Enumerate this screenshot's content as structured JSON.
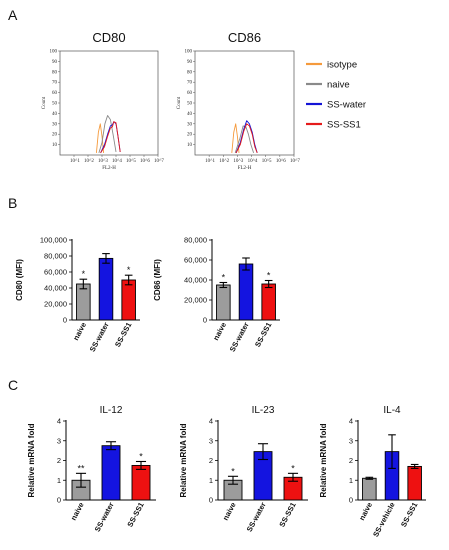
{
  "panels": {
    "a": "A",
    "b": "B",
    "c": "C"
  },
  "legend": [
    {
      "label": "isotype",
      "color": "#f59a3c"
    },
    {
      "label": "naive",
      "color": "#8a8a8a"
    },
    {
      "label": "SS-water",
      "color": "#1414d6"
    },
    {
      "label": "SS-SS1",
      "color": "#e51b1b"
    }
  ],
  "chart_data": [
    {
      "type": "line",
      "title": "CD80",
      "xlabel": "FL2-H",
      "ylabel": "Count",
      "xscale": "log",
      "xlim": [
        1,
        10000000
      ],
      "x_tick_labels": [
        "10^1",
        "10^2",
        "10^3",
        "10^4",
        "10^5",
        "10^6",
        "10^7"
      ],
      "y_tick_labels": [
        "10",
        "20",
        "30",
        "40",
        "50",
        "60",
        "70",
        "80",
        "90",
        "100"
      ],
      "ylim": [
        0,
        100
      ],
      "series": [
        {
          "name": "isotype",
          "x": [
            400,
            550,
            750,
            1000,
            1300
          ],
          "y": [
            2,
            22,
            30,
            18,
            2
          ]
        },
        {
          "name": "naive",
          "x": [
            600,
            1000,
            1600,
            2500,
            4000,
            6500,
            10000
          ],
          "y": [
            2,
            12,
            30,
            38,
            34,
            18,
            3
          ]
        },
        {
          "name": "SS-water",
          "x": [
            800,
            1500,
            2500,
            4000,
            5500,
            7000,
            10000,
            14000,
            20000
          ],
          "y": [
            2,
            10,
            20,
            28,
            29,
            32,
            30,
            18,
            3
          ]
        },
        {
          "name": "SS-SS1",
          "x": [
            800,
            1500,
            2500,
            4000,
            5500,
            7000,
            10000,
            14000,
            20000
          ],
          "y": [
            2,
            8,
            18,
            26,
            27,
            32,
            31,
            18,
            3
          ]
        }
      ]
    },
    {
      "type": "line",
      "title": "CD86",
      "xlabel": "FL2-H",
      "ylabel": "Count",
      "xscale": "log",
      "xlim": [
        1,
        10000000
      ],
      "x_tick_labels": [
        "10^1",
        "10^2",
        "10^3",
        "10^4",
        "10^5",
        "10^6",
        "10^7"
      ],
      "y_tick_labels": [
        "10",
        "20",
        "30",
        "40",
        "50",
        "60",
        "70",
        "80",
        "90",
        "100"
      ],
      "ylim": [
        0,
        100
      ],
      "series": [
        {
          "name": "isotype",
          "x": [
            400,
            550,
            750,
            1000,
            1300
          ],
          "y": [
            2,
            22,
            30,
            18,
            2
          ]
        },
        {
          "name": "naive",
          "x": [
            700,
            1500,
            2500,
            4000,
            6000,
            9000,
            14000
          ],
          "y": [
            2,
            16,
            28,
            27,
            20,
            10,
            2
          ]
        },
        {
          "name": "SS-water",
          "x": [
            800,
            1600,
            2800,
            4500,
            7000,
            11000,
            17000,
            25000
          ],
          "y": [
            2,
            12,
            25,
            33,
            30,
            22,
            10,
            2
          ]
        },
        {
          "name": "SS-SS1",
          "x": [
            800,
            1600,
            2800,
            4500,
            7000,
            11000,
            17000,
            25000
          ],
          "y": [
            2,
            10,
            23,
            30,
            28,
            20,
            8,
            2
          ]
        }
      ]
    },
    {
      "type": "bar",
      "title": "",
      "ylabel": "CD80 (MFI)",
      "ylim": [
        0,
        100000
      ],
      "y_ticks": [
        0,
        20000,
        40000,
        60000,
        80000,
        100000
      ],
      "y_tick_labels": [
        "0",
        "20,000",
        "40,000",
        "60,000",
        "80,000",
        "100,000"
      ],
      "categories": [
        "naive",
        "SS-water",
        "SS-SS1"
      ],
      "values": [
        45000,
        77000,
        50000
      ],
      "errors": [
        6000,
        6000,
        6000
      ],
      "significance": [
        "*",
        "",
        "*"
      ],
      "colors": [
        "#9c9c9c",
        "#1414e0",
        "#ee1111"
      ]
    },
    {
      "type": "bar",
      "title": "",
      "ylabel": "CD86 (MFI)",
      "ylim": [
        0,
        80000
      ],
      "y_ticks": [
        0,
        20000,
        40000,
        60000,
        80000
      ],
      "y_tick_labels": [
        "0",
        "20,000",
        "40,000",
        "60,000",
        "80,000"
      ],
      "categories": [
        "naive",
        "SS-water",
        "SS-SS1"
      ],
      "values": [
        35000,
        56000,
        36000
      ],
      "errors": [
        2500,
        6000,
        3500
      ],
      "significance": [
        "*",
        "",
        "*"
      ],
      "colors": [
        "#9c9c9c",
        "#1414e0",
        "#ee1111"
      ]
    },
    {
      "type": "bar",
      "title": "IL-12",
      "ylabel": "Relative mRNA fold",
      "ylim": [
        0,
        4
      ],
      "y_ticks": [
        0,
        1,
        2,
        3,
        4
      ],
      "y_tick_labels": [
        "0",
        "1",
        "2",
        "3",
        "4"
      ],
      "categories": [
        "naive",
        "SS-water",
        "SS-SS1"
      ],
      "values": [
        1.0,
        2.75,
        1.75
      ],
      "errors": [
        0.35,
        0.2,
        0.2
      ],
      "significance": [
        "**",
        "",
        "*"
      ],
      "colors": [
        "#9c9c9c",
        "#1414e0",
        "#ee1111"
      ]
    },
    {
      "type": "bar",
      "title": "IL-23",
      "ylabel": "Relative mRNA fold",
      "ylim": [
        0,
        4
      ],
      "y_ticks": [
        0,
        1,
        2,
        3,
        4
      ],
      "y_tick_labels": [
        "0",
        "1",
        "2",
        "3",
        "4"
      ],
      "categories": [
        "naive",
        "SS-water",
        "SS-SS1"
      ],
      "values": [
        1.0,
        2.45,
        1.15
      ],
      "errors": [
        0.2,
        0.4,
        0.2
      ],
      "significance": [
        "*",
        "",
        "*"
      ],
      "colors": [
        "#9c9c9c",
        "#1414e0",
        "#ee1111"
      ]
    },
    {
      "type": "bar",
      "title": "IL-4",
      "ylabel": "Relative mRNA fold",
      "ylim": [
        0,
        4
      ],
      "y_ticks": [
        0,
        1,
        2,
        3,
        4
      ],
      "y_tick_labels": [
        "0",
        "1",
        "2",
        "3",
        "4"
      ],
      "categories": [
        "naive",
        "SS-vehicle",
        "SS-SS1"
      ],
      "values": [
        1.1,
        2.45,
        1.7
      ],
      "errors": [
        0.05,
        0.85,
        0.1
      ],
      "significance": [
        "",
        "",
        ""
      ],
      "colors": [
        "#9c9c9c",
        "#1414e0",
        "#ee1111"
      ]
    }
  ]
}
